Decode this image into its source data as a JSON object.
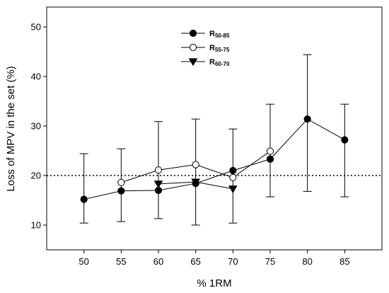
{
  "chart_data": {
    "type": "line",
    "xlabel": "% 1RM",
    "ylabel": "Loss of MPV in the set (%)",
    "xlim": [
      45,
      90
    ],
    "ylim": [
      5,
      54
    ],
    "xticks": [
      50,
      55,
      60,
      65,
      70,
      75,
      80,
      85
    ],
    "yticks": [
      10,
      20,
      30,
      40,
      50
    ],
    "reference_line": {
      "y": 20,
      "style": "dotted"
    },
    "legend": {
      "position": "top-center"
    },
    "series": [
      {
        "name_main": "R",
        "name_sub": "50-85",
        "marker": "filled-circle",
        "x": [
          50,
          55,
          60,
          65,
          70,
          75,
          80,
          85
        ],
        "y": [
          15.2,
          16.9,
          17.0,
          18.4,
          21.0,
          23.3,
          31.4,
          27.2
        ],
        "upper": [
          24.4,
          25.4,
          30.9,
          31.4,
          29.4,
          34.4,
          44.4,
          34.4
        ],
        "lower": [
          10.4,
          10.7,
          11.3,
          10.0,
          10.4,
          15.7,
          16.8,
          15.7
        ]
      },
      {
        "name_main": "R",
        "name_sub": "55-75",
        "marker": "open-circle",
        "x": [
          55,
          60,
          65,
          70,
          75
        ],
        "y": [
          18.6,
          21.1,
          22.2,
          19.6,
          24.9
        ]
      },
      {
        "name_main": "R",
        "name_sub": "60-70",
        "marker": "filled-triangle-down",
        "x": [
          60,
          65,
          70
        ],
        "y": [
          18.3,
          18.7,
          17.3
        ]
      }
    ]
  }
}
